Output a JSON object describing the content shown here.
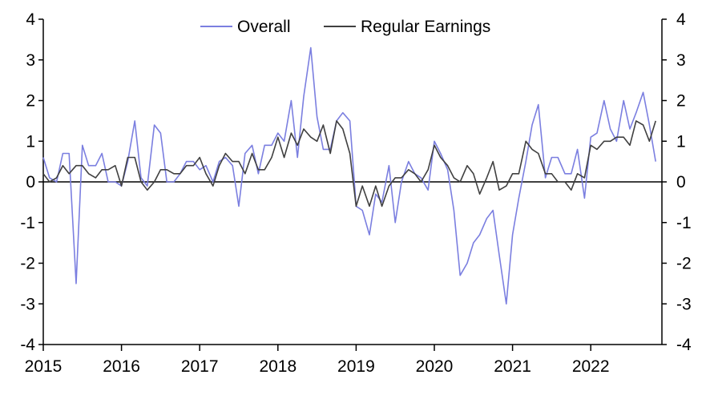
{
  "chart_data": {
    "type": "line",
    "title": "",
    "xlabel": "",
    "ylabel": "",
    "xlim": [
      2015,
      2022.92
    ],
    "ylim": [
      -4,
      4
    ],
    "x_ticks": [
      "2015",
      "2016",
      "2017",
      "2018",
      "2019",
      "2020",
      "2021",
      "2022"
    ],
    "y_ticks": [
      "-4",
      "-3",
      "-2",
      "-1",
      "0",
      "1",
      "2",
      "3",
      "4"
    ],
    "y_axis_mirrored_right": true,
    "grid": false,
    "zero_line": true,
    "legend_position": "top-center",
    "series": [
      {
        "name": "Overall",
        "color": "#7b7fe0",
        "points": [
          [
            2015.0,
            0.6
          ],
          [
            2015.08,
            0.1
          ],
          [
            2015.17,
            0.0
          ],
          [
            2015.25,
            0.7
          ],
          [
            2015.33,
            0.7
          ],
          [
            2015.42,
            -2.5
          ],
          [
            2015.5,
            0.9
          ],
          [
            2015.58,
            0.4
          ],
          [
            2015.67,
            0.4
          ],
          [
            2015.75,
            0.7
          ],
          [
            2015.83,
            0.0
          ],
          [
            2015.92,
            0.0
          ],
          [
            2016.0,
            -0.1
          ],
          [
            2016.08,
            0.5
          ],
          [
            2016.17,
            1.5
          ],
          [
            2016.25,
            0.1
          ],
          [
            2016.33,
            -0.1
          ],
          [
            2016.42,
            1.4
          ],
          [
            2016.5,
            1.2
          ],
          [
            2016.58,
            0.0
          ],
          [
            2016.67,
            0.0
          ],
          [
            2016.75,
            0.2
          ],
          [
            2016.83,
            0.5
          ],
          [
            2016.92,
            0.5
          ],
          [
            2017.0,
            0.3
          ],
          [
            2017.08,
            0.4
          ],
          [
            2017.17,
            0.0
          ],
          [
            2017.25,
            0.5
          ],
          [
            2017.33,
            0.6
          ],
          [
            2017.42,
            0.4
          ],
          [
            2017.5,
            -0.6
          ],
          [
            2017.58,
            0.7
          ],
          [
            2017.67,
            0.9
          ],
          [
            2017.75,
            0.2
          ],
          [
            2017.83,
            0.9
          ],
          [
            2017.92,
            0.9
          ],
          [
            2018.0,
            1.2
          ],
          [
            2018.08,
            1.0
          ],
          [
            2018.17,
            2.0
          ],
          [
            2018.25,
            0.6
          ],
          [
            2018.33,
            2.1
          ],
          [
            2018.42,
            3.3
          ],
          [
            2018.5,
            1.6
          ],
          [
            2018.58,
            0.8
          ],
          [
            2018.67,
            0.8
          ],
          [
            2018.75,
            1.5
          ],
          [
            2018.83,
            1.7
          ],
          [
            2018.92,
            1.5
          ],
          [
            2019.0,
            -0.6
          ],
          [
            2019.08,
            -0.7
          ],
          [
            2019.17,
            -1.3
          ],
          [
            2019.25,
            -0.3
          ],
          [
            2019.33,
            -0.5
          ],
          [
            2019.42,
            0.4
          ],
          [
            2019.5,
            -1.0
          ],
          [
            2019.58,
            0.0
          ],
          [
            2019.67,
            0.5
          ],
          [
            2019.75,
            0.2
          ],
          [
            2019.83,
            0.1
          ],
          [
            2019.92,
            -0.2
          ],
          [
            2020.0,
            1.0
          ],
          [
            2020.08,
            0.7
          ],
          [
            2020.17,
            0.3
          ],
          [
            2020.25,
            -0.7
          ],
          [
            2020.33,
            -2.3
          ],
          [
            2020.42,
            -2.0
          ],
          [
            2020.5,
            -1.5
          ],
          [
            2020.58,
            -1.3
          ],
          [
            2020.67,
            -0.9
          ],
          [
            2020.75,
            -0.7
          ],
          [
            2020.83,
            -1.8
          ],
          [
            2020.92,
            -3.0
          ],
          [
            2021.0,
            -1.3
          ],
          [
            2021.08,
            -0.4
          ],
          [
            2021.17,
            0.5
          ],
          [
            2021.25,
            1.4
          ],
          [
            2021.33,
            1.9
          ],
          [
            2021.42,
            0.1
          ],
          [
            2021.5,
            0.6
          ],
          [
            2021.58,
            0.6
          ],
          [
            2021.67,
            0.2
          ],
          [
            2021.75,
            0.2
          ],
          [
            2021.83,
            0.8
          ],
          [
            2021.92,
            -0.4
          ],
          [
            2022.0,
            1.1
          ],
          [
            2022.08,
            1.2
          ],
          [
            2022.17,
            2.0
          ],
          [
            2022.25,
            1.3
          ],
          [
            2022.33,
            1.0
          ],
          [
            2022.42,
            2.0
          ],
          [
            2022.5,
            1.3
          ],
          [
            2022.58,
            1.7
          ],
          [
            2022.67,
            2.2
          ],
          [
            2022.75,
            1.4
          ],
          [
            2022.83,
            0.5
          ]
        ]
      },
      {
        "name": "Regular Earnings",
        "color": "#404040",
        "points": [
          [
            2015.0,
            0.2
          ],
          [
            2015.08,
            0.0
          ],
          [
            2015.17,
            0.1
          ],
          [
            2015.25,
            0.4
          ],
          [
            2015.33,
            0.2
          ],
          [
            2015.42,
            0.4
          ],
          [
            2015.5,
            0.4
          ],
          [
            2015.58,
            0.2
          ],
          [
            2015.67,
            0.1
          ],
          [
            2015.75,
            0.3
          ],
          [
            2015.83,
            0.3
          ],
          [
            2015.92,
            0.4
          ],
          [
            2016.0,
            -0.1
          ],
          [
            2016.08,
            0.6
          ],
          [
            2016.17,
            0.6
          ],
          [
            2016.25,
            0.0
          ],
          [
            2016.33,
            -0.2
          ],
          [
            2016.42,
            0.0
          ],
          [
            2016.5,
            0.3
          ],
          [
            2016.58,
            0.3
          ],
          [
            2016.67,
            0.2
          ],
          [
            2016.75,
            0.2
          ],
          [
            2016.83,
            0.4
          ],
          [
            2016.92,
            0.4
          ],
          [
            2017.0,
            0.6
          ],
          [
            2017.08,
            0.2
          ],
          [
            2017.17,
            -0.1
          ],
          [
            2017.25,
            0.4
          ],
          [
            2017.33,
            0.7
          ],
          [
            2017.42,
            0.5
          ],
          [
            2017.5,
            0.5
          ],
          [
            2017.58,
            0.2
          ],
          [
            2017.67,
            0.7
          ],
          [
            2017.75,
            0.3
          ],
          [
            2017.83,
            0.3
          ],
          [
            2017.92,
            0.6
          ],
          [
            2018.0,
            1.1
          ],
          [
            2018.08,
            0.6
          ],
          [
            2018.17,
            1.2
          ],
          [
            2018.25,
            0.9
          ],
          [
            2018.33,
            1.3
          ],
          [
            2018.42,
            1.1
          ],
          [
            2018.5,
            1.0
          ],
          [
            2018.58,
            1.4
          ],
          [
            2018.67,
            0.7
          ],
          [
            2018.75,
            1.5
          ],
          [
            2018.83,
            1.3
          ],
          [
            2018.92,
            0.7
          ],
          [
            2019.0,
            -0.6
          ],
          [
            2019.08,
            -0.1
          ],
          [
            2019.17,
            -0.6
          ],
          [
            2019.25,
            -0.1
          ],
          [
            2019.33,
            -0.6
          ],
          [
            2019.42,
            -0.1
          ],
          [
            2019.5,
            0.1
          ],
          [
            2019.58,
            0.1
          ],
          [
            2019.67,
            0.3
          ],
          [
            2019.75,
            0.2
          ],
          [
            2019.83,
            0.0
          ],
          [
            2019.92,
            0.3
          ],
          [
            2020.0,
            0.9
          ],
          [
            2020.08,
            0.6
          ],
          [
            2020.17,
            0.4
          ],
          [
            2020.25,
            0.1
          ],
          [
            2020.33,
            0.0
          ],
          [
            2020.42,
            0.4
          ],
          [
            2020.5,
            0.2
          ],
          [
            2020.58,
            -0.3
          ],
          [
            2020.67,
            0.1
          ],
          [
            2020.75,
            0.5
          ],
          [
            2020.83,
            -0.2
          ],
          [
            2020.92,
            -0.1
          ],
          [
            2021.0,
            0.2
          ],
          [
            2021.08,
            0.2
          ],
          [
            2021.17,
            1.0
          ],
          [
            2021.25,
            0.8
          ],
          [
            2021.33,
            0.7
          ],
          [
            2021.42,
            0.2
          ],
          [
            2021.5,
            0.2
          ],
          [
            2021.58,
            0.0
          ],
          [
            2021.67,
            0.0
          ],
          [
            2021.75,
            -0.2
          ],
          [
            2021.83,
            0.2
          ],
          [
            2021.92,
            0.1
          ],
          [
            2022.0,
            0.9
          ],
          [
            2022.08,
            0.8
          ],
          [
            2022.17,
            1.0
          ],
          [
            2022.25,
            1.0
          ],
          [
            2022.33,
            1.1
          ],
          [
            2022.42,
            1.1
          ],
          [
            2022.5,
            0.9
          ],
          [
            2022.58,
            1.5
          ],
          [
            2022.67,
            1.4
          ],
          [
            2022.75,
            1.0
          ],
          [
            2022.83,
            1.5
          ]
        ]
      }
    ]
  }
}
